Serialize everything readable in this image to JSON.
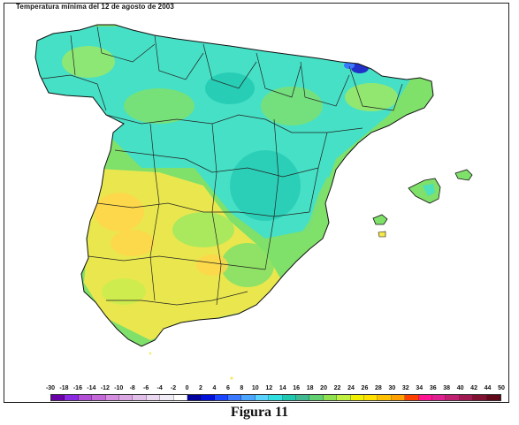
{
  "title": "Temperatura mínima del 12 de agosto de 2003",
  "caption": "Figura 11",
  "legend": {
    "labels": [
      "-30",
      "-18",
      "-16",
      "-14",
      "-12",
      "-10",
      "-8",
      "-6",
      "-4",
      "-2",
      "0",
      "2",
      "4",
      "6",
      "8",
      "10",
      "12",
      "14",
      "16",
      "18",
      "20",
      "22",
      "24",
      "26",
      "28",
      "30",
      "32",
      "34",
      "36",
      "38",
      "40",
      "42",
      "44",
      "50"
    ],
    "colors": [
      "#6a00a8",
      "#8a2be2",
      "#b24fd6",
      "#c46ad8",
      "#d58ee0",
      "#dca8e4",
      "#e2bfe9",
      "#ead8f0",
      "#f2ecf6",
      "#ffffff",
      "#00009c",
      "#0010d8",
      "#1a44ff",
      "#3a78ff",
      "#4aa6ff",
      "#5ad2ff",
      "#30e0e0",
      "#20c8b0",
      "#40b890",
      "#60d070",
      "#90e050",
      "#c0f040",
      "#f0f000",
      "#ffe000",
      "#ffc000",
      "#ffa000",
      "#ff4000",
      "#ff1493",
      "#e02090",
      "#c02070",
      "#a01850",
      "#801030",
      "#600818"
    ]
  },
  "regions": [
    {
      "name": "peninsula",
      "colour": "#7fe06a"
    },
    {
      "name": "cool-north",
      "colour": "#40e0d0"
    },
    {
      "name": "warm-south",
      "colour": "#f5e84a"
    },
    {
      "name": "hot-guadiana",
      "colour": "#ffd64a"
    },
    {
      "name": "coldest-pyrenees",
      "colour": "#2030c8"
    }
  ]
}
